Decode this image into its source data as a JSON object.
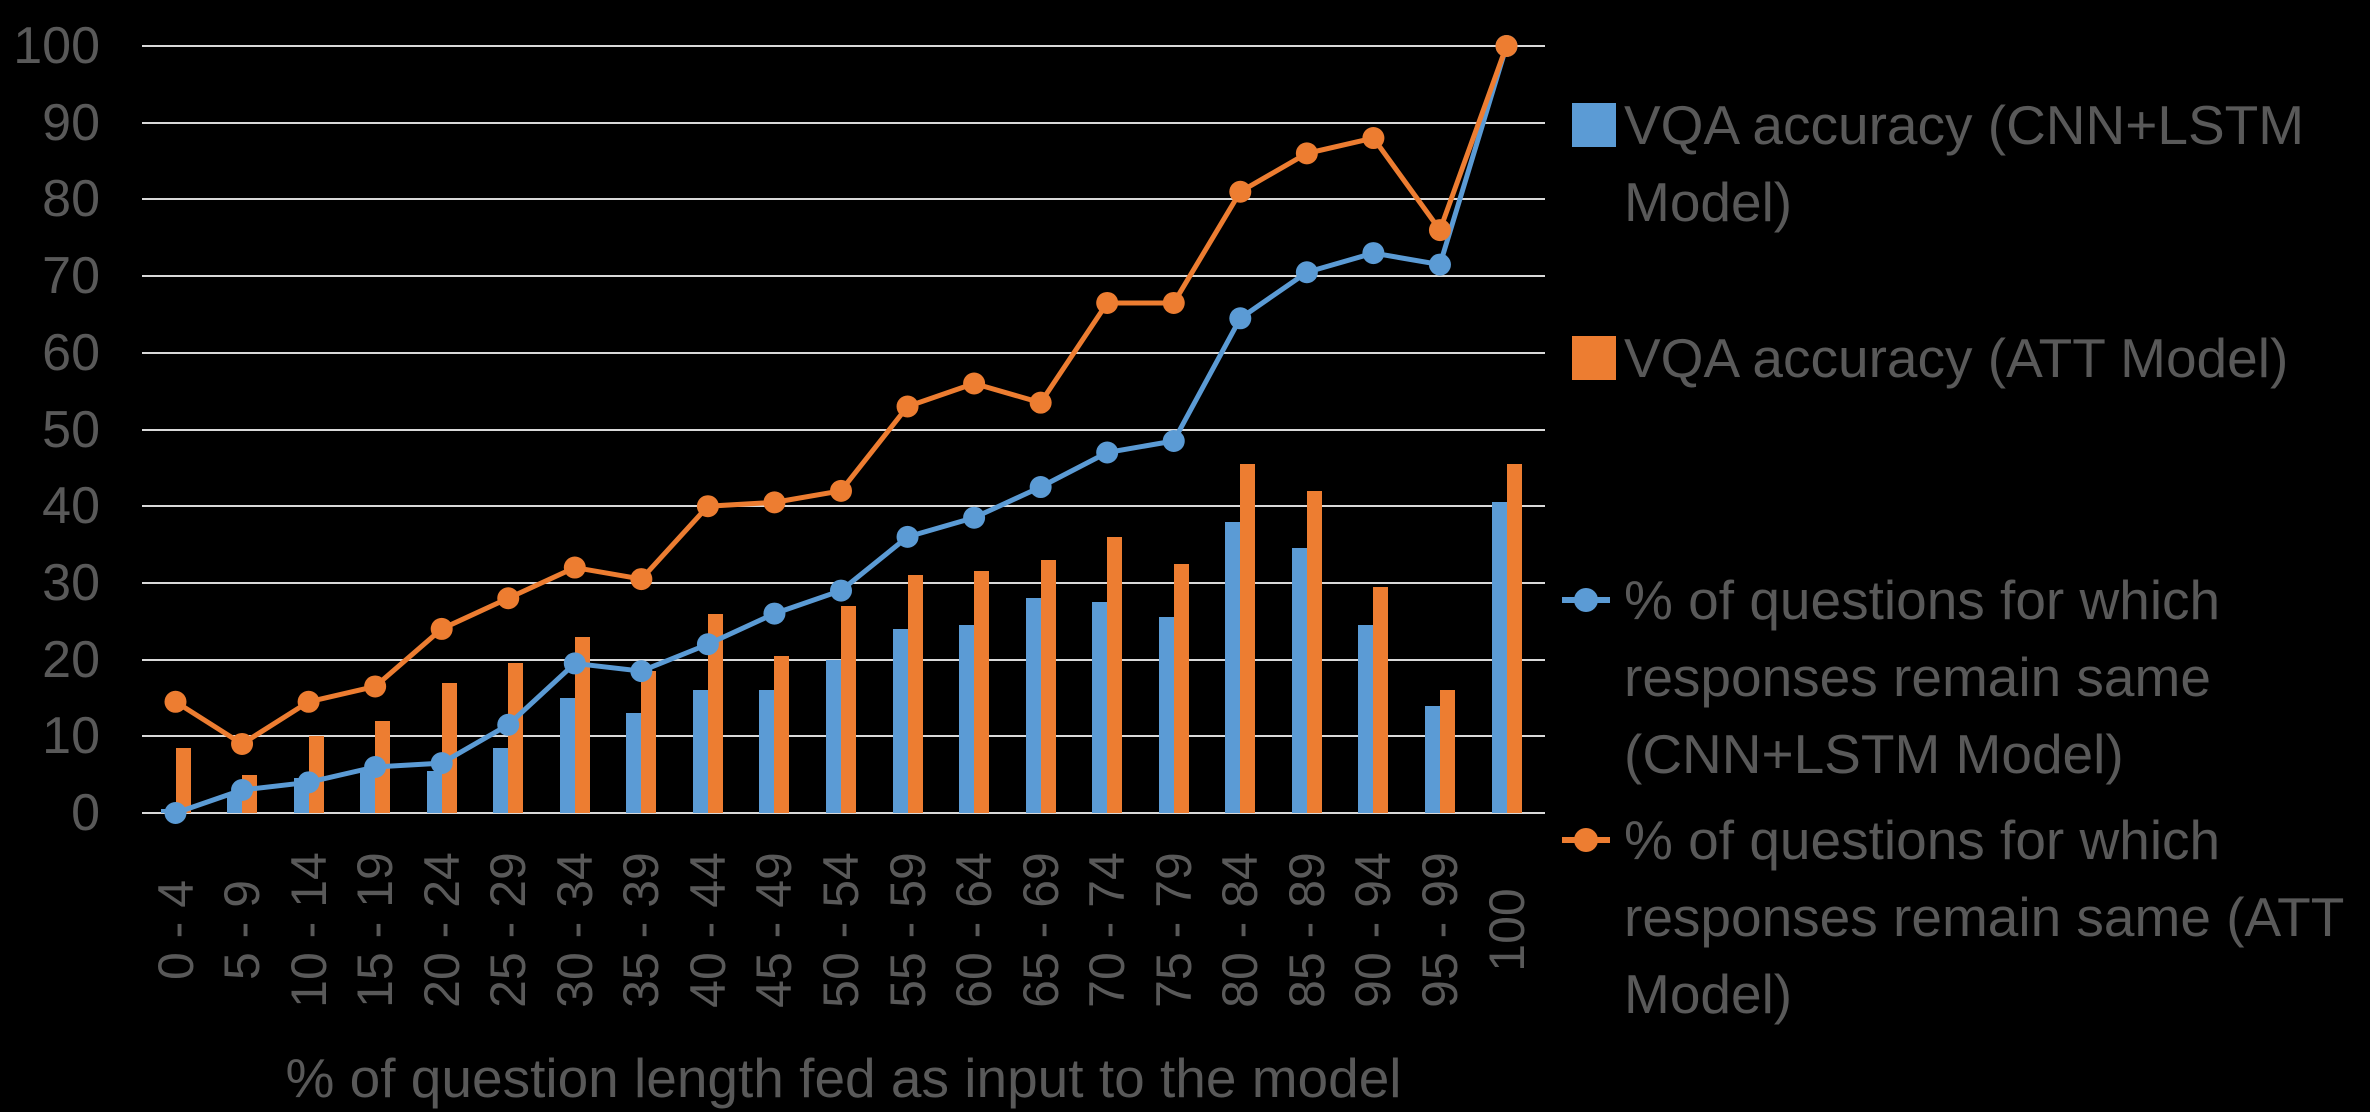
{
  "chart_data": {
    "type": "combo-bar-line",
    "title": "",
    "xlabel": "% of question length fed as input to the model",
    "ylabel": "",
    "ylim": [
      0,
      100
    ],
    "yticks": [
      0,
      10,
      20,
      30,
      40,
      50,
      60,
      70,
      80,
      90,
      100
    ],
    "grid": true,
    "legend_position": "right",
    "background_color": "#000000",
    "text_color": "#595959",
    "grid_color": "#D9D9D9",
    "categories": [
      "0 - 4",
      "5 - 9",
      "10 - 14",
      "15 - 19",
      "20 - 24",
      "25 - 29",
      "30 - 34",
      "35 - 39",
      "40 - 44",
      "45 - 49",
      "50 - 54",
      "55 - 59",
      "60 - 64",
      "65 - 69",
      "70 - 74",
      "75 - 79",
      "80 - 84",
      "85 - 89",
      "90 - 94",
      "95 - 99",
      "100"
    ],
    "series": [
      {
        "name": "VQA accuracy (CNN+LSTM Model)",
        "legend_lines": [
          "VQA accuracy (CNN+LSTM",
          "Model)"
        ],
        "type": "bar",
        "color": "#5B9BD5",
        "values": [
          0.5,
          2.5,
          4.5,
          5.5,
          5.5,
          8.5,
          15,
          13,
          16,
          16,
          20,
          24,
          24.5,
          28,
          27.5,
          25.5,
          38,
          34.5,
          24.5,
          14,
          40.5
        ]
      },
      {
        "name": "VQA accuracy (ATT Model)",
        "legend_lines": [
          "VQA accuracy (ATT Model)"
        ],
        "type": "bar",
        "color": "#ED7D31",
        "values": [
          8.5,
          5,
          10,
          12,
          17,
          19.5,
          23,
          18.5,
          26,
          20.5,
          27,
          31,
          31.5,
          33,
          36,
          32.5,
          45.5,
          42,
          29.5,
          16,
          45.5
        ]
      },
      {
        "name": "% of questions for which responses remain same (CNN+LSTM Model)",
        "legend_lines": [
          "% of questions for which",
          "responses remain same",
          "(CNN+LSTM Model)"
        ],
        "type": "line",
        "color": "#5B9BD5",
        "values": [
          0,
          3,
          4,
          6,
          6.5,
          11.5,
          19.5,
          18.5,
          22,
          26,
          29,
          36,
          38.5,
          42.5,
          47,
          48.5,
          64.5,
          70.5,
          73,
          71.5,
          100
        ]
      },
      {
        "name": "% of questions for which responses remain same (ATT Model)",
        "legend_lines": [
          "% of questions for which",
          "responses remain same (ATT",
          "Model)"
        ],
        "type": "line",
        "color": "#ED7D31",
        "values": [
          14.5,
          9,
          14.5,
          16.5,
          24,
          28,
          32,
          30.5,
          40,
          40.5,
          42,
          53,
          56,
          53.5,
          66.5,
          66.5,
          81,
          86,
          88,
          76,
          100
        ]
      }
    ]
  }
}
